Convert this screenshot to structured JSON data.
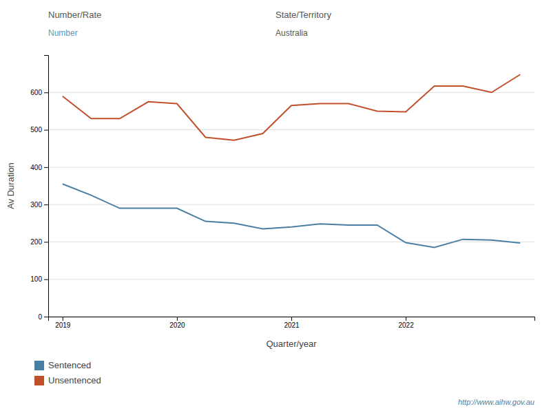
{
  "chart_data": {
    "type": "line",
    "title": "Number/Rate",
    "subtitle": "Number",
    "annotations": [
      "State/Territory",
      "Australia",
      "http://www.aihw.gov.au"
    ],
    "x_label": "Quarter/year",
    "y_label": "Av Duration",
    "categories": [
      "2019",
      null,
      null,
      null,
      "2020",
      null,
      null,
      null,
      "2021",
      null,
      null,
      null,
      "2022",
      null,
      null,
      null,
      null
    ],
    "series": [
      {
        "name": "Sentenced",
        "color": "#4a7fa5",
        "values": [
          355,
          325,
          290,
          290,
          290,
          255,
          250,
          235,
          240,
          248,
          245,
          245,
          198,
          185,
          207,
          205,
          197
        ]
      },
      {
        "name": "Unsentenced",
        "color": "#c0502a",
        "values": [
          590,
          530,
          530,
          575,
          570,
          480,
          472,
          490,
          565,
          570,
          570,
          550,
          548,
          617,
          617,
          600,
          648
        ]
      }
    ],
    "ylim": [
      0,
      700
    ],
    "yticks": [
      0,
      100,
      200,
      300,
      400,
      500,
      600
    ],
    "grid": true,
    "legend": "bottom"
  }
}
